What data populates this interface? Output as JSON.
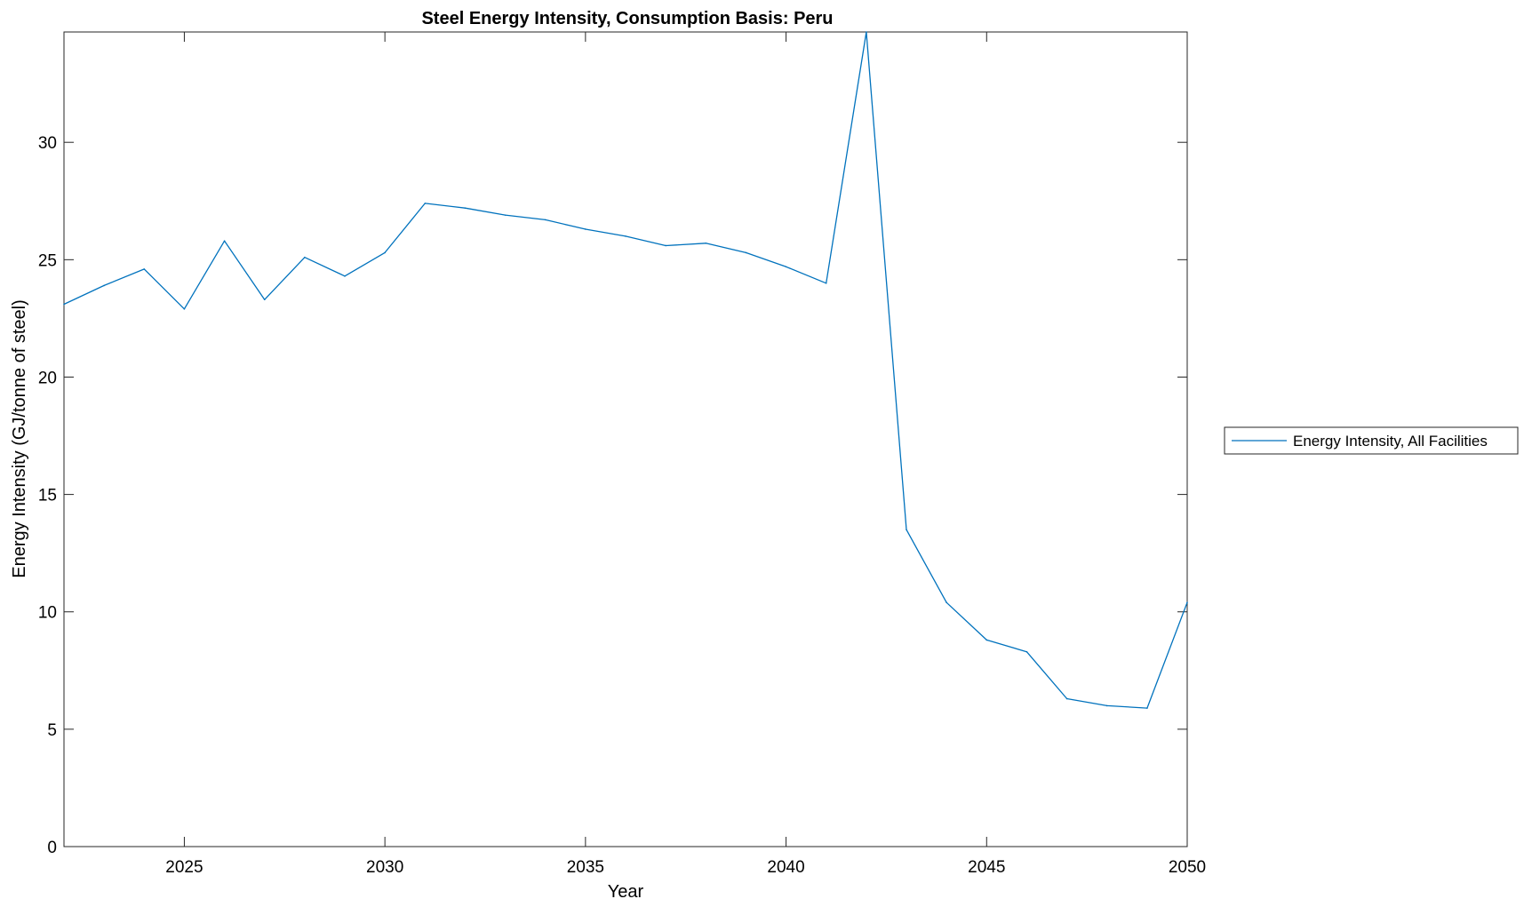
{
  "chart_data": {
    "type": "line",
    "title": "Steel Energy Intensity, Consumption Basis: Peru",
    "xlabel": "Year",
    "ylabel": "Energy Intensity (GJ/tonne of steel)",
    "xlim": [
      2022,
      2050
    ],
    "ylim": [
      0,
      34.7
    ],
    "xticks": [
      2025,
      2030,
      2035,
      2040,
      2045,
      2050
    ],
    "yticks": [
      0,
      5,
      10,
      15,
      20,
      25,
      30
    ],
    "grid": false,
    "legend_position": "outside-right",
    "series": [
      {
        "name": "Energy Intensity, All Facilities",
        "color": "#0072BD",
        "x": [
          2022,
          2023,
          2024,
          2025,
          2026,
          2027,
          2028,
          2029,
          2030,
          2031,
          2032,
          2033,
          2034,
          2035,
          2036,
          2037,
          2038,
          2039,
          2040,
          2041,
          2042,
          2043,
          2044,
          2045,
          2046,
          2047,
          2048,
          2049,
          2050
        ],
        "y": [
          23.1,
          23.9,
          24.6,
          22.9,
          25.8,
          23.3,
          25.1,
          24.3,
          25.3,
          27.4,
          27.2,
          26.9,
          26.7,
          26.3,
          26.0,
          25.6,
          25.7,
          25.3,
          24.7,
          24.0,
          34.7,
          13.5,
          10.4,
          8.8,
          8.3,
          6.3,
          6.0,
          5.9,
          10.4
        ]
      }
    ]
  }
}
